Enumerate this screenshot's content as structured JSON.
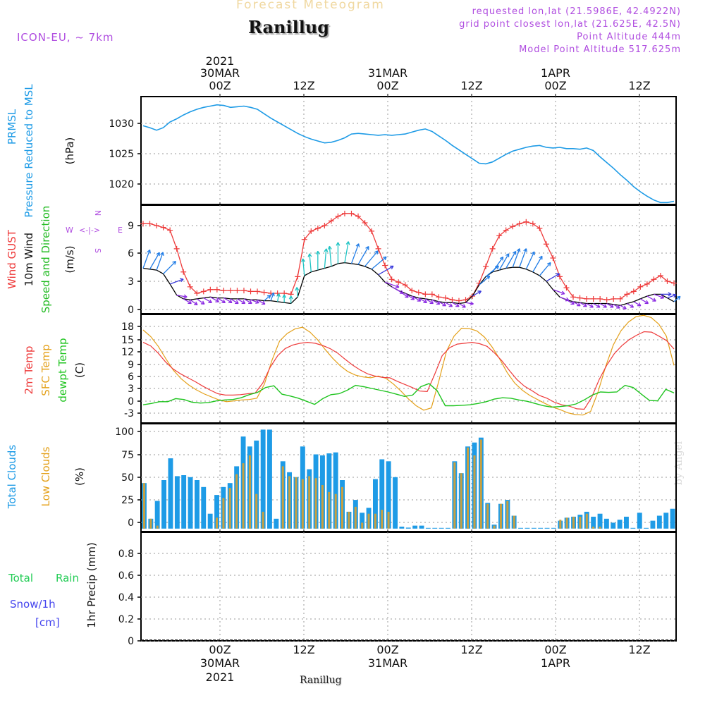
{
  "header": {
    "top_title": "Forecast Meteogram",
    "location": "Ranillug",
    "model": "ICON-EU, ~ 7km",
    "requested": "requested lon,lat (21.5986E, 42.4922N)",
    "grid_point": "grid point closest lon,lat (21.625E, 42.5N)",
    "point_altitude": "Point Altitude 444m",
    "model_altitude": "Model Point Altitude 517.625m",
    "footer_location": "Ranillug",
    "watermark": "by Angel"
  },
  "colors": {
    "pressure": "#1e9be6",
    "gust": "#ee3b3b",
    "wind": "#000000",
    "dir_label": "#22bb22",
    "temp": "#ee3b3b",
    "sfc": "#e4a11b",
    "dew": "#1fc41f",
    "total_clouds": "#1e9be6",
    "low_clouds": "#c8a040",
    "rain": "#22cc55",
    "snow": "#4444ee",
    "purple": "#b04ee0"
  },
  "chart_data": [
    {
      "type": "line",
      "title": "PRMSL Pressure Reduced to MSL",
      "ylabel": "(hPa)",
      "ylim": [
        1017.5,
        1034.5
      ],
      "yticks": [
        "1020",
        "1025",
        "1030"
      ],
      "series": [
        {
          "name": "PRMSL",
          "values": [
            1029.9,
            1029.6,
            1029.2,
            1029.6,
            1030.5,
            1031.0,
            1031.6,
            1032.1,
            1032.5,
            1032.8,
            1033.0,
            1033.2,
            1033.1,
            1032.8,
            1032.9,
            1033.0,
            1032.8,
            1032.5,
            1031.8,
            1031.1,
            1030.5,
            1029.9,
            1029.3,
            1028.7,
            1028.2,
            1027.8,
            1027.5,
            1027.2,
            1027.3,
            1027.6,
            1028.0,
            1028.6,
            1028.7,
            1028.6,
            1028.5,
            1028.4,
            1028.5,
            1028.4,
            1028.5,
            1028.6,
            1028.9,
            1029.2,
            1029.4,
            1029.0,
            1028.3,
            1027.6,
            1026.8,
            1026.1,
            1025.4,
            1024.7,
            1024.0,
            1023.9,
            1024.2,
            1024.8,
            1025.4,
            1025.9,
            1026.2,
            1026.5,
            1026.7,
            1026.8,
            1026.5,
            1026.4,
            1026.5,
            1026.3,
            1026.3,
            1026.2,
            1026.4,
            1026.0,
            1025.0,
            1024.1,
            1023.2,
            1022.2,
            1021.3,
            1020.3,
            1019.5,
            1018.8,
            1018.2,
            1017.8,
            1017.8,
            1018.0
          ]
        }
      ]
    },
    {
      "type": "line",
      "title": "Wind GUST / 10m Wind Speed and Direction",
      "ylabel": "(m/s)",
      "ylim": [
        -0.5,
        11.2
      ],
      "yticks": [
        "0",
        "3",
        "6",
        "9"
      ],
      "compass": {
        "w": "W",
        "e": "E",
        "n": "N",
        "s": "S"
      },
      "series": [
        {
          "name": "Wind GUST",
          "values": [
            9.2,
            9.2,
            9.0,
            8.8,
            8.5,
            6.5,
            4.0,
            2.4,
            1.7,
            1.9,
            2.1,
            2.1,
            2.0,
            2.0,
            2.0,
            2.0,
            1.9,
            1.9,
            1.8,
            1.7,
            1.7,
            1.7,
            1.6,
            3.5,
            7.5,
            8.4,
            8.7,
            9.0,
            9.5,
            10.0,
            10.3,
            10.3,
            10.0,
            9.3,
            8.4,
            6.5,
            4.7,
            3.2,
            2.9,
            2.6,
            2.0,
            1.8,
            1.6,
            1.6,
            1.3,
            1.2,
            1.0,
            0.9,
            1.0,
            1.4,
            2.8,
            4.6,
            6.5,
            7.9,
            8.5,
            8.9,
            9.2,
            9.4,
            9.2,
            8.7,
            7.0,
            5.5,
            3.5,
            2.3,
            1.3,
            1.2,
            1.1,
            1.1,
            1.1,
            1.0,
            1.1,
            1.1,
            1.6,
            1.9,
            2.4,
            2.7,
            3.2,
            3.6,
            3.0,
            2.8
          ]
        },
        {
          "name": "10m Wind",
          "values": [
            4.4,
            4.3,
            4.2,
            3.8,
            2.7,
            1.5,
            1.1,
            1.0,
            1.1,
            1.2,
            1.3,
            1.2,
            1.2,
            1.1,
            1.1,
            1.1,
            1.0,
            1.0,
            0.9,
            0.9,
            0.8,
            0.7,
            0.6,
            1.3,
            3.6,
            4.0,
            4.2,
            4.4,
            4.6,
            4.9,
            5.0,
            4.9,
            4.8,
            4.6,
            4.3,
            3.7,
            2.9,
            2.4,
            2.0,
            1.7,
            1.4,
            1.2,
            1.1,
            1.0,
            0.8,
            0.7,
            0.7,
            0.6,
            0.7,
            1.4,
            2.6,
            3.5,
            4.0,
            4.2,
            4.4,
            4.5,
            4.5,
            4.3,
            4.0,
            3.6,
            3.0,
            2.1,
            1.3,
            1.0,
            0.8,
            0.7,
            0.6,
            0.6,
            0.6,
            0.6,
            0.5,
            0.4,
            0.6,
            0.8,
            1.1,
            1.4,
            1.6,
            1.6,
            1.2,
            0.8
          ]
        }
      ],
      "direction_deg": [
        200,
        210,
        200,
        225,
        250,
        280,
        300,
        305,
        305,
        300,
        300,
        300,
        300,
        300,
        300,
        300,
        290,
        300,
        230,
        200,
        190,
        180,
        180,
        175,
        175,
        175,
        180,
        185,
        175,
        180,
        190,
        200,
        210,
        220,
        230,
        240,
        290,
        300,
        305,
        305,
        300,
        300,
        300,
        300,
        300,
        300,
        300,
        300,
        280,
        240,
        230,
        230,
        215,
        210,
        210,
        200,
        200,
        205,
        210,
        220,
        240,
        290,
        290,
        300,
        300,
        300,
        300,
        300,
        300,
        300,
        300,
        300,
        300,
        300,
        300,
        300,
        290,
        270,
        250,
        230
      ]
    },
    {
      "type": "line",
      "title": "2m Temp / SFC Temp / dewpt Temp",
      "ylabel": "(C)",
      "ylim": [
        -5,
        19.5
      ],
      "yticks": [
        "-3",
        "0",
        "3",
        "6",
        "9",
        "12",
        "15",
        "18"
      ],
      "series": [
        {
          "name": "2m Temp",
          "values": [
            13.2,
            12.4,
            10.8,
            8.8,
            7.2,
            6.1,
            5.2,
            4.3,
            3.3,
            2.4,
            1.6,
            1.3,
            1.3,
            1.4,
            1.6,
            1.8,
            4.0,
            7.6,
            10.2,
            11.8,
            12.6,
            13.0,
            13.2,
            13.0,
            12.5,
            11.8,
            10.8,
            9.4,
            8.1,
            7.0,
            6.1,
            5.6,
            5.3,
            5.2,
            4.4,
            3.7,
            3.0,
            2.2,
            2.1,
            6.0,
            10.2,
            12.0,
            12.8,
            13.0,
            13.2,
            12.9,
            12.3,
            10.8,
            9.0,
            6.8,
            4.8,
            3.3,
            2.3,
            1.2,
            0.6,
            -0.3,
            -0.9,
            -1.2,
            -1.8,
            -1.9,
            0.8,
            4.8,
            8.0,
            10.6,
            12.4,
            13.8,
            14.8,
            15.6,
            15.5,
            14.6,
            13.6,
            11.7
          ]
        },
        {
          "name": "SFC Temp",
          "values": [
            16.0,
            14.5,
            12.3,
            9.5,
            6.9,
            5.0,
            3.6,
            2.5,
            1.6,
            0.9,
            0.2,
            -0.2,
            0.0,
            0.2,
            0.3,
            0.6,
            3.8,
            9.2,
            13.5,
            15.2,
            16.2,
            16.6,
            15.5,
            13.8,
            11.6,
            9.6,
            7.9,
            6.6,
            5.8,
            5.4,
            5.2,
            5.6,
            5.1,
            3.8,
            2.2,
            0.4,
            -1.1,
            -2.1,
            -1.6,
            4.5,
            11.2,
            14.6,
            16.4,
            16.3,
            15.8,
            14.4,
            12.2,
            9.5,
            6.4,
            4.0,
            2.4,
            1.2,
            0.3,
            -0.6,
            -1.4,
            -2.0,
            -2.7,
            -3.1,
            -3.2,
            -2.4,
            2.1,
            7.8,
            12.6,
            15.8,
            17.8,
            19.0,
            19.3,
            18.8,
            17.3,
            14.6,
            8.0
          ]
        },
        {
          "name": "dewpt Temp",
          "values": [
            -0.9,
            -0.6,
            -0.2,
            -0.2,
            0.5,
            0.3,
            -0.3,
            -0.5,
            -0.4,
            0.0,
            0.2,
            0.3,
            0.7,
            1.4,
            1.9,
            3.0,
            3.4,
            1.5,
            1.1,
            0.6,
            -0.1,
            -0.8,
            0.5,
            1.4,
            1.6,
            2.4,
            3.5,
            3.2,
            2.8,
            2.4,
            2.0,
            1.5,
            1.0,
            1.3,
            3.2,
            3.9,
            2.3,
            -1.1,
            -1.1,
            -1.0,
            -0.9,
            -0.6,
            -0.2,
            0.4,
            0.7,
            0.6,
            0.2,
            -0.1,
            -0.6,
            -1.1,
            -1.4,
            -1.3,
            -1.1,
            -0.7,
            0.2,
            1.3,
            2.0,
            1.9,
            2.0,
            3.5,
            3.0,
            1.5,
            0.1,
            0.0,
            2.6,
            1.8
          ]
        }
      ]
    },
    {
      "type": "bar",
      "title": "Total Clouds / Low Clouds",
      "ylabel": "(%)",
      "ylim": [
        -3,
        106
      ],
      "yticks": [
        "0",
        "25",
        "50",
        "75",
        "100"
      ],
      "series": [
        {
          "name": "Total Clouds",
          "values": [
            46,
            10,
            28,
            49,
            71,
            53,
            54,
            52,
            49,
            42,
            15,
            34,
            42,
            46,
            63,
            93,
            83,
            89,
            100,
            100,
            10,
            68,
            57,
            52,
            83,
            60,
            75,
            74,
            76,
            77,
            49,
            17,
            29,
            16,
            21,
            50,
            70,
            68,
            52,
            2,
            1,
            3,
            3,
            0,
            0,
            0,
            0,
            68,
            56,
            83,
            87,
            92,
            26,
            4,
            25,
            29,
            13,
            0,
            0,
            0,
            0,
            0,
            0,
            8,
            11,
            12,
            14,
            17,
            12,
            15,
            10,
            6,
            9,
            12,
            0,
            16,
            0,
            8,
            13,
            16,
            20
          ]
        },
        {
          "name": "Low Clouds",
          "values": [
            46,
            10,
            3,
            0,
            0,
            0,
            0,
            0,
            0,
            0,
            0,
            11,
            31,
            41,
            55,
            66,
            74,
            35,
            17,
            0,
            0,
            63,
            53,
            52,
            50,
            53,
            51,
            44,
            37,
            35,
            42,
            17,
            22,
            6,
            15,
            15,
            19,
            17,
            0,
            0,
            0,
            0,
            0,
            0,
            0,
            0,
            0,
            67,
            56,
            82,
            74,
            90,
            25,
            3,
            25,
            28,
            13,
            0,
            0,
            0,
            0,
            0,
            0,
            9,
            11,
            12,
            12,
            15,
            2,
            2,
            0,
            0,
            0,
            0,
            0,
            0,
            0,
            0,
            0,
            0,
            0
          ]
        }
      ]
    },
    {
      "type": "line",
      "title": "1hr Precip",
      "ylabel": "1hr Precip (mm)",
      "ylim": [
        0,
        1.0
      ],
      "yticks": [
        "0",
        "0.2",
        "0.4",
        "0.6",
        "0.8"
      ],
      "series": [
        {
          "name": "Total Rain",
          "values": []
        },
        {
          "name": "Snow/1h [cm]",
          "values": []
        }
      ]
    }
  ],
  "time_axis": {
    "top_labels": [
      {
        "line1": "2021",
        "line2": "30MAR",
        "line3": "00Z"
      },
      {
        "line1": "",
        "line2": "",
        "line3": "12Z"
      },
      {
        "line1": "",
        "line2": "31MAR",
        "line3": "00Z"
      },
      {
        "line1": "",
        "line2": "",
        "line3": "12Z"
      },
      {
        "line1": "",
        "line2": "1APR",
        "line3": "00Z"
      },
      {
        "line1": "",
        "line2": "",
        "line3": "12Z"
      }
    ],
    "bottom_labels": [
      {
        "line1": "00Z",
        "line2": "30MAR",
        "line3": "2021"
      },
      {
        "line1": "12Z",
        "line2": "",
        "line3": ""
      },
      {
        "line1": "00Z",
        "line2": "31MAR",
        "line3": ""
      },
      {
        "line1": "12Z",
        "line2": "",
        "line3": ""
      },
      {
        "line1": "00Z",
        "line2": "1APR",
        "line3": ""
      },
      {
        "line1": "12Z",
        "line2": "",
        "line3": ""
      }
    ]
  },
  "panel_labels": {
    "p1": {
      "a": "PRMSL",
      "b": "Pressure Reduced to MSL",
      "unit": "(hPa)"
    },
    "p2": {
      "a": "Wind GUST",
      "b": "10m Wind",
      "c": "Speed and Direction",
      "unit": "(m/s)"
    },
    "p3": {
      "a": "2m Temp",
      "b": "SFC Temp",
      "c": "dewpt Temp",
      "unit": "(C)"
    },
    "p4": {
      "a": "Total Clouds",
      "b": "Low Clouds",
      "unit": "(%)"
    },
    "p5": {
      "a": "Total",
      "b": "Rain",
      "c": "Snow/1h",
      "d": "[cm]",
      "unit": "1hr Precip (mm)"
    }
  }
}
